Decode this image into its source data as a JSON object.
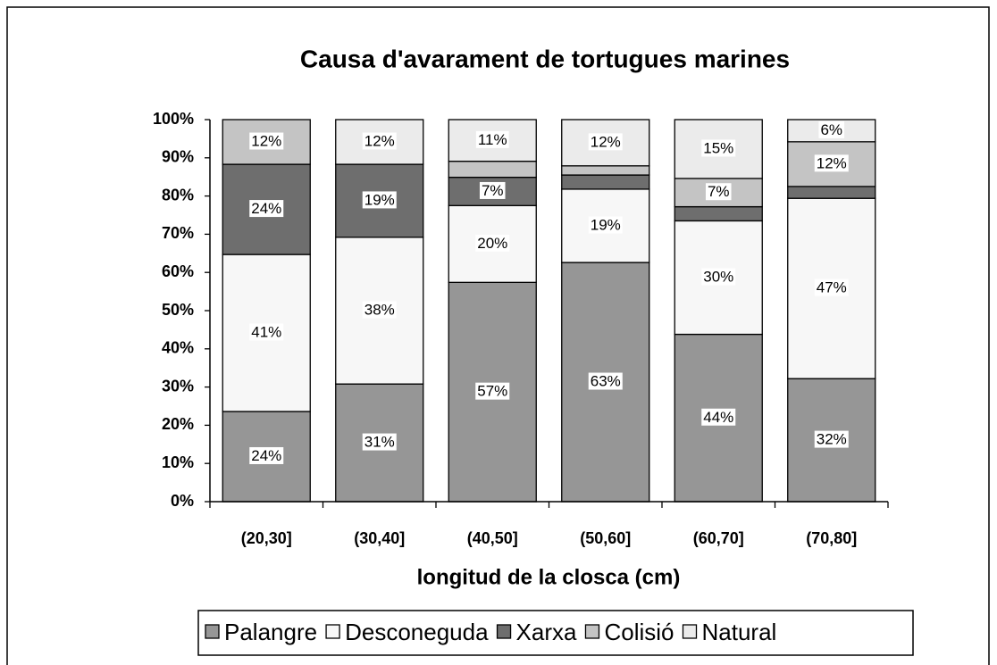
{
  "chart_data": {
    "type": "stacked_bar_100",
    "title": "Causa d'avarament de tortugues marines",
    "x_label": "longitud de la closca (cm)",
    "categories": [
      "(20,30]",
      "(30,40]",
      "(40,50]",
      "(50,60]",
      "(60,70]",
      "(70,80]"
    ],
    "series": [
      {
        "name": "Palangre",
        "color": "#969696",
        "values": [
          23.6,
          30.8,
          57.4,
          62.6,
          43.8,
          32.2
        ],
        "value_labels": [
          "24%",
          "31%",
          "57%",
          "63%",
          "44%",
          "32%"
        ]
      },
      {
        "name": "Desconeguda",
        "color": "#f7f7f7",
        "values": [
          41.1,
          38.4,
          20.1,
          19.2,
          29.7,
          47.2
        ],
        "value_labels": [
          "41%",
          "38%",
          "20%",
          "19%",
          "30%",
          "47%"
        ]
      },
      {
        "name": "Xarxa",
        "color": "#6e6e6e",
        "values": [
          23.6,
          19.1,
          7.4,
          3.7,
          3.7,
          3.1
        ],
        "value_labels": [
          "24%",
          "19%",
          "7%",
          null,
          null,
          null
        ]
      },
      {
        "name": "Colisió",
        "color": "#c4c4c4",
        "values": [
          11.7,
          0,
          4.2,
          2.4,
          7.4,
          11.7
        ],
        "value_labels": [
          "12%",
          null,
          null,
          null,
          "7%",
          "12%"
        ]
      },
      {
        "name": "Natural",
        "color": "#ebebeb",
        "values": [
          0,
          11.7,
          10.9,
          12.1,
          15.4,
          5.8
        ],
        "value_labels": [
          null,
          "12%",
          "11%",
          "12%",
          "15%",
          "6%"
        ]
      }
    ],
    "ylim": [
      0,
      100
    ],
    "yticks": [
      {
        "value": 0,
        "label": "0%"
      },
      {
        "value": 10,
        "label": "10%"
      },
      {
        "value": 20,
        "label": "20%"
      },
      {
        "value": 30,
        "label": "30%"
      },
      {
        "value": 40,
        "label": "40%"
      },
      {
        "value": 50,
        "label": "50%"
      },
      {
        "value": 60,
        "label": "60%"
      },
      {
        "value": 70,
        "label": "70%"
      },
      {
        "value": 80,
        "label": "80%"
      },
      {
        "value": 90,
        "label": "90%"
      },
      {
        "value": 100,
        "label": "100%"
      }
    ],
    "legend": "bottom"
  }
}
